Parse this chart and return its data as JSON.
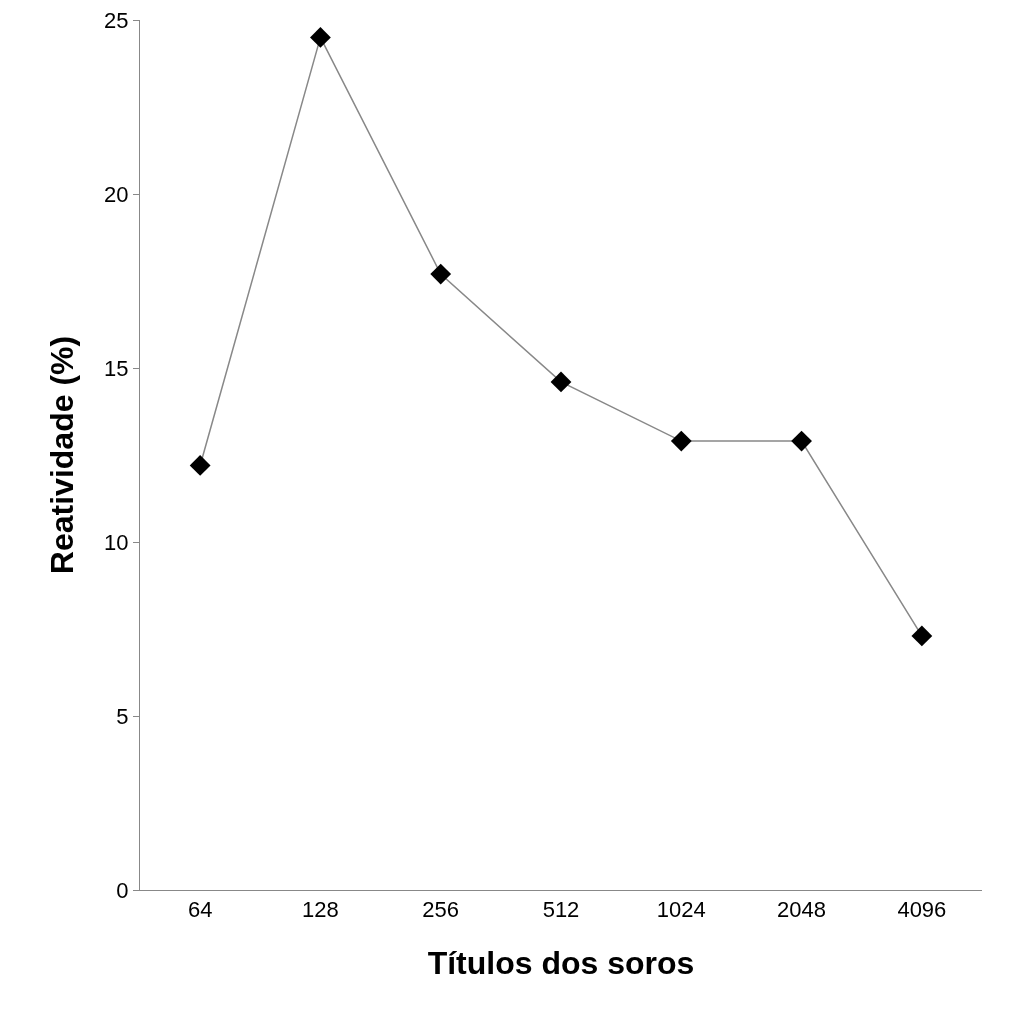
{
  "chart_data": {
    "type": "line",
    "xlabel": "Títulos dos soros",
    "ylabel": "Reatividade (%)",
    "categories": [
      "64",
      "128",
      "256",
      "512",
      "1024",
      "2048",
      "4096"
    ],
    "series": [
      {
        "color": "#000000",
        "values": [
          12.2,
          24.5,
          17.7,
          14.6,
          12.9,
          12.9,
          7.3
        ]
      }
    ],
    "ylim": [
      0,
      25
    ],
    "yticks": [
      0,
      5,
      10,
      15,
      20,
      25
    ],
    "grid": false,
    "marker": "diamond",
    "line_style": "solid"
  }
}
